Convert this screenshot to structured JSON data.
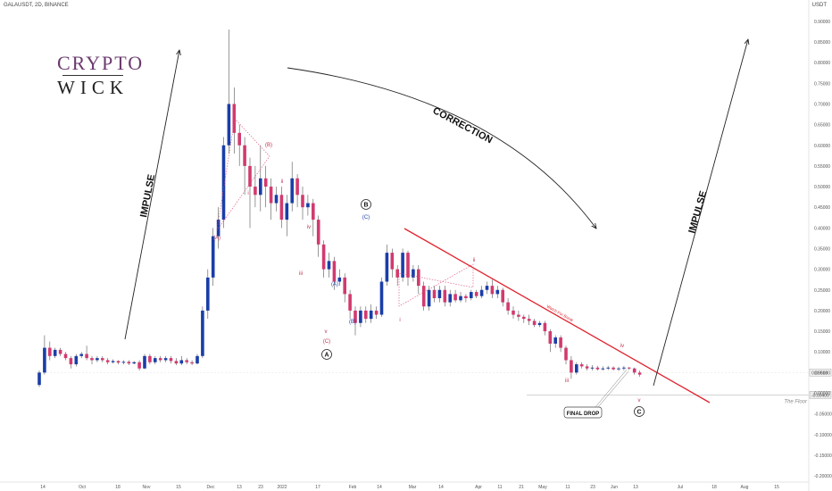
{
  "header": {
    "title": "GALAUSDT, 2D, BINANCE",
    "unit": "USDT"
  },
  "logo": {
    "line1": "CRYPTO",
    "line2": "WICK"
  },
  "chart_data": {
    "type": "candlestick",
    "y_ticks": [
      "0.90000",
      "0.85000",
      "0.80000",
      "0.75000",
      "0.70000",
      "0.65000",
      "0.60000",
      "0.55000",
      "0.50000",
      "0.45000",
      "0.40000",
      "0.35000",
      "0.30000",
      "0.25000",
      "0.20000",
      "0.15000",
      "0.10000",
      "0.05000",
      "0.00000",
      "-0.05000",
      "-0.10000",
      "-0.15000",
      "-0.20000"
    ],
    "y_tick_values": [
      0.9,
      0.85,
      0.8,
      0.75,
      0.7,
      0.65,
      0.6,
      0.55,
      0.5,
      0.45,
      0.4,
      0.35,
      0.3,
      0.25,
      0.2,
      0.15,
      0.1,
      0.05,
      0.0,
      -0.05,
      -0.1,
      -0.15,
      -0.2
    ],
    "x_ticks": [
      "14",
      "Oct",
      "18",
      "Nov",
      "15",
      "Dec",
      "13",
      "23",
      "2022",
      "17",
      "Feb",
      "14",
      "Mar",
      "14",
      "Apr",
      "11",
      "21",
      "May",
      "11",
      "23",
      "Jun",
      "13",
      "Jul",
      "18",
      "Aug",
      "15"
    ],
    "price_labels": [
      {
        "text": "0.05013",
        "value": 0.05013
      },
      {
        "text": "-0.00400",
        "value": -0.004
      }
    ],
    "ylim": [
      -0.215,
      0.93
    ],
    "candles": [
      [
        0.02,
        0.05,
        0.015,
        0.055
      ],
      [
        0.05,
        0.11,
        0.045,
        0.14
      ],
      [
        0.11,
        0.09,
        0.08,
        0.125
      ],
      [
        0.09,
        0.105,
        0.085,
        0.11
      ],
      [
        0.105,
        0.095,
        0.09,
        0.11
      ],
      [
        0.095,
        0.085,
        0.08,
        0.1
      ],
      [
        0.085,
        0.07,
        0.06,
        0.09
      ],
      [
        0.07,
        0.09,
        0.065,
        0.095
      ],
      [
        0.09,
        0.095,
        0.085,
        0.1
      ],
      [
        0.095,
        0.085,
        0.08,
        0.115
      ],
      [
        0.085,
        0.08,
        0.07,
        0.09
      ],
      [
        0.08,
        0.085,
        0.075,
        0.09
      ],
      [
        0.085,
        0.08,
        0.075,
        0.09
      ],
      [
        0.08,
        0.075,
        0.07,
        0.085
      ],
      [
        0.075,
        0.078,
        0.072,
        0.082
      ],
      [
        0.078,
        0.074,
        0.07,
        0.08
      ],
      [
        0.074,
        0.076,
        0.07,
        0.08
      ],
      [
        0.076,
        0.072,
        0.068,
        0.08
      ],
      [
        0.072,
        0.075,
        0.07,
        0.078
      ],
      [
        0.075,
        0.06,
        0.055,
        0.08
      ],
      [
        0.06,
        0.09,
        0.058,
        0.095
      ],
      [
        0.09,
        0.075,
        0.07,
        0.095
      ],
      [
        0.075,
        0.085,
        0.07,
        0.09
      ],
      [
        0.085,
        0.08,
        0.075,
        0.09
      ],
      [
        0.08,
        0.085,
        0.075,
        0.09
      ],
      [
        0.085,
        0.078,
        0.072,
        0.09
      ],
      [
        0.078,
        0.072,
        0.068,
        0.085
      ],
      [
        0.072,
        0.08,
        0.068,
        0.09
      ],
      [
        0.08,
        0.075,
        0.07,
        0.085
      ],
      [
        0.075,
        0.072,
        0.068,
        0.08
      ],
      [
        0.072,
        0.09,
        0.07,
        0.095
      ],
      [
        0.09,
        0.2,
        0.085,
        0.21
      ],
      [
        0.2,
        0.28,
        0.18,
        0.3
      ],
      [
        0.28,
        0.38,
        0.26,
        0.4
      ],
      [
        0.38,
        0.42,
        0.35,
        0.45
      ],
      [
        0.42,
        0.6,
        0.4,
        0.62
      ],
      [
        0.6,
        0.7,
        0.58,
        0.88
      ],
      [
        0.7,
        0.63,
        0.58,
        0.74
      ],
      [
        0.63,
        0.6,
        0.55,
        0.65
      ],
      [
        0.6,
        0.55,
        0.48,
        0.62
      ],
      [
        0.55,
        0.5,
        0.4,
        0.57
      ],
      [
        0.5,
        0.48,
        0.45,
        0.55
      ],
      [
        0.48,
        0.52,
        0.44,
        0.6
      ],
      [
        0.52,
        0.5,
        0.45,
        0.55
      ],
      [
        0.5,
        0.46,
        0.42,
        0.52
      ],
      [
        0.46,
        0.48,
        0.44,
        0.5
      ],
      [
        0.48,
        0.42,
        0.4,
        0.5
      ],
      [
        0.42,
        0.46,
        0.38,
        0.48
      ],
      [
        0.46,
        0.52,
        0.44,
        0.56
      ],
      [
        0.52,
        0.48,
        0.45,
        0.53
      ],
      [
        0.48,
        0.45,
        0.42,
        0.5
      ],
      [
        0.45,
        0.46,
        0.43,
        0.48
      ],
      [
        0.46,
        0.42,
        0.38,
        0.47
      ],
      [
        0.42,
        0.36,
        0.33,
        0.43
      ],
      [
        0.36,
        0.3,
        0.28,
        0.37
      ],
      [
        0.3,
        0.32,
        0.28,
        0.34
      ],
      [
        0.32,
        0.27,
        0.25,
        0.33
      ],
      [
        0.27,
        0.28,
        0.26,
        0.3
      ],
      [
        0.28,
        0.24,
        0.22,
        0.29
      ],
      [
        0.24,
        0.2,
        0.18,
        0.25
      ],
      [
        0.2,
        0.17,
        0.14,
        0.21
      ],
      [
        0.17,
        0.2,
        0.16,
        0.21
      ],
      [
        0.2,
        0.18,
        0.17,
        0.21
      ],
      [
        0.18,
        0.2,
        0.17,
        0.215
      ],
      [
        0.2,
        0.19,
        0.18,
        0.21
      ],
      [
        0.19,
        0.27,
        0.185,
        0.28
      ],
      [
        0.27,
        0.34,
        0.26,
        0.36
      ],
      [
        0.34,
        0.3,
        0.28,
        0.35
      ],
      [
        0.3,
        0.28,
        0.26,
        0.31
      ],
      [
        0.28,
        0.34,
        0.27,
        0.35
      ],
      [
        0.34,
        0.28,
        0.26,
        0.345
      ],
      [
        0.28,
        0.3,
        0.27,
        0.31
      ],
      [
        0.3,
        0.26,
        0.24,
        0.31
      ],
      [
        0.26,
        0.21,
        0.2,
        0.27
      ],
      [
        0.21,
        0.25,
        0.2,
        0.26
      ],
      [
        0.25,
        0.23,
        0.22,
        0.26
      ],
      [
        0.23,
        0.25,
        0.22,
        0.26
      ],
      [
        0.25,
        0.22,
        0.21,
        0.26
      ],
      [
        0.22,
        0.24,
        0.21,
        0.25
      ],
      [
        0.24,
        0.225,
        0.22,
        0.25
      ],
      [
        0.225,
        0.235,
        0.22,
        0.245
      ],
      [
        0.235,
        0.23,
        0.22,
        0.24
      ],
      [
        0.23,
        0.245,
        0.225,
        0.25
      ],
      [
        0.245,
        0.235,
        0.23,
        0.25
      ],
      [
        0.235,
        0.25,
        0.23,
        0.26
      ],
      [
        0.25,
        0.26,
        0.24,
        0.27
      ],
      [
        0.26,
        0.24,
        0.23,
        0.275
      ],
      [
        0.24,
        0.25,
        0.23,
        0.26
      ],
      [
        0.25,
        0.22,
        0.21,
        0.255
      ],
      [
        0.22,
        0.2,
        0.19,
        0.23
      ],
      [
        0.2,
        0.19,
        0.18,
        0.21
      ],
      [
        0.19,
        0.185,
        0.175,
        0.2
      ],
      [
        0.185,
        0.18,
        0.17,
        0.19
      ],
      [
        0.18,
        0.175,
        0.165,
        0.19
      ],
      [
        0.175,
        0.165,
        0.16,
        0.18
      ],
      [
        0.165,
        0.17,
        0.16,
        0.175
      ],
      [
        0.17,
        0.15,
        0.14,
        0.175
      ],
      [
        0.15,
        0.12,
        0.1,
        0.155
      ],
      [
        0.12,
        0.135,
        0.11,
        0.14
      ],
      [
        0.135,
        0.11,
        0.1,
        0.14
      ],
      [
        0.11,
        0.08,
        0.07,
        0.115
      ],
      [
        0.08,
        0.05,
        0.035,
        0.09
      ],
      [
        0.05,
        0.07,
        0.045,
        0.075
      ],
      [
        0.07,
        0.065,
        0.06,
        0.075
      ],
      [
        0.065,
        0.06,
        0.055,
        0.07
      ],
      [
        0.06,
        0.062,
        0.055,
        0.068
      ],
      [
        0.062,
        0.058,
        0.055,
        0.066
      ],
      [
        0.058,
        0.06,
        0.055,
        0.065
      ],
      [
        0.06,
        0.062,
        0.056,
        0.066
      ],
      [
        0.062,
        0.058,
        0.055,
        0.065
      ],
      [
        0.058,
        0.06,
        0.054,
        0.064
      ],
      [
        0.06,
        0.062,
        0.055,
        0.066
      ],
      [
        0.062,
        0.06,
        0.056,
        0.064
      ],
      [
        0.06,
        0.05,
        0.045,
        0.062
      ],
      [
        0.05,
        0.045,
        0.04,
        0.055
      ]
    ],
    "colors": {
      "up": "#1a3ea8",
      "down": "#d23a6f",
      "trendline": "#e0232e",
      "arrow": "#222222",
      "wave_label": "#c0324f",
      "wave_label_blue": "#1a3ea8"
    },
    "annotations": {
      "impulse_left": "IMPULSE",
      "correction": "CORRECTION",
      "impulse_right": "IMPULSE",
      "final_drop": "FINAL DROP",
      "watch_breakout": "Watch For Break",
      "the_floor": "The Floor",
      "wave_A": "A",
      "wave_B": "B",
      "wave_C": "C",
      "sub_waves": [
        "(A)",
        "(B)",
        "(C)",
        "(A)",
        "(B)",
        "(C)",
        "i",
        "ii",
        "iii",
        "iv",
        "v",
        "i",
        "ii",
        "iii",
        "iv",
        "v"
      ]
    }
  }
}
